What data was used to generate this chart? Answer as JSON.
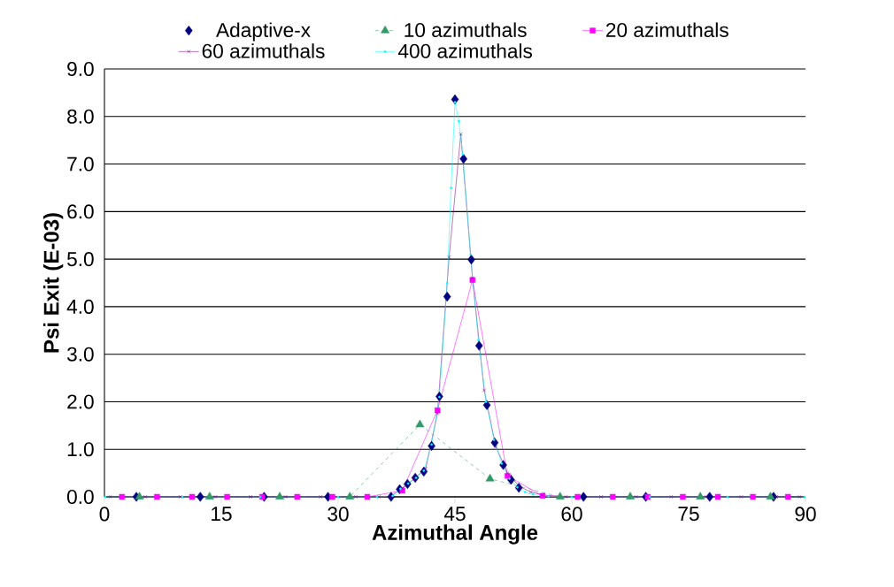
{
  "chart_data": {
    "type": "line",
    "xlabel": "Azimuthal Angle",
    "ylabel": "Psi Exit (E-03)",
    "xlim": [
      0,
      90
    ],
    "ylim": [
      0,
      9
    ],
    "xticks": [
      0,
      15,
      30,
      45,
      60,
      75,
      90
    ],
    "yticks": [
      {
        "value": 0,
        "label": "0.0"
      },
      {
        "value": 1,
        "label": "1.0"
      },
      {
        "value": 2,
        "label": "2.0"
      },
      {
        "value": 3,
        "label": "3.0"
      },
      {
        "value": 4,
        "label": "4.0"
      },
      {
        "value": 5,
        "label": "5.0"
      },
      {
        "value": 6,
        "label": "6.0"
      },
      {
        "value": 7,
        "label": "7.0"
      },
      {
        "value": 8,
        "label": "8.0"
      },
      {
        "value": 9,
        "label": "9.0"
      }
    ],
    "grid": "y",
    "legend": "top",
    "series": [
      {
        "name": "Adaptive-x",
        "type": "scatter",
        "marker": "diamond",
        "color": "#000080",
        "x": [
          4.1,
          12.3,
          20.5,
          28.7,
          36.8,
          37.9,
          38.9,
          39.9,
          41.0,
          42.0,
          43.0,
          44.0,
          45.0,
          46.1,
          47.1,
          48.1,
          49.1,
          50.1,
          51.2,
          52.2,
          53.2,
          61.5,
          69.5,
          77.7,
          85.9
        ],
        "values": [
          0,
          0,
          0,
          0,
          0,
          0.16,
          0.27,
          0.4,
          0.53,
          1.07,
          2.11,
          4.21,
          8.36,
          7.11,
          4.99,
          3.18,
          1.93,
          1.14,
          0.67,
          0.36,
          0.19,
          0,
          0,
          0,
          0
        ]
      },
      {
        "name": "10 azimuthals",
        "marker": "triangle",
        "line_style": "dashed",
        "color": "#339966",
        "x": [
          4.5,
          13.5,
          22.5,
          31.5,
          40.5,
          49.5,
          58.5,
          67.5,
          76.5,
          85.5
        ],
        "values": [
          0,
          0,
          0,
          0,
          1.52,
          0.38,
          0,
          0,
          0,
          0
        ]
      },
      {
        "name": "20 azimuthals",
        "marker": "square",
        "color": "#ff00ff",
        "x": [
          2.25,
          6.75,
          11.25,
          15.75,
          20.25,
          24.75,
          29.25,
          33.75,
          38.25,
          42.75,
          47.25,
          51.75,
          56.25,
          60.75,
          65.25,
          69.75,
          74.25,
          78.75,
          83.25,
          87.75
        ],
        "values": [
          0,
          0,
          0,
          0,
          0,
          0,
          0,
          0,
          0.13,
          1.82,
          4.56,
          0.44,
          0.02,
          0,
          0,
          0,
          0,
          0,
          0,
          0
        ]
      },
      {
        "name": "60 azimuthals",
        "marker": "cross",
        "color": "#800080",
        "x": [
          0.75,
          5.25,
          9.75,
          14.25,
          18.75,
          23.25,
          27.75,
          32.25,
          35.25,
          36.75,
          38.25,
          39.75,
          41.25,
          42.75,
          44.25,
          45.75,
          47.25,
          48.75,
          50.25,
          51.75,
          53.25,
          54.75,
          56.25,
          59.25,
          63.75,
          68.25,
          72.75,
          77.25,
          81.75,
          86.25,
          89.25
        ],
        "values": [
          0,
          0,
          0,
          0,
          0,
          0,
          0,
          0,
          0,
          0.01,
          0.18,
          0.38,
          0.6,
          1.75,
          5.04,
          7.63,
          4.6,
          2.24,
          1.05,
          0.5,
          0.22,
          0.1,
          0.04,
          0,
          0,
          0,
          0,
          0,
          0,
          0,
          0
        ]
      },
      {
        "name": "400 azimuthals",
        "marker": "circle",
        "color": "#00ffff",
        "x": [
          0.1,
          10,
          20,
          30,
          35,
          37,
          38,
          39,
          40,
          41,
          42,
          43,
          44,
          44.5,
          45,
          45.5,
          46,
          47,
          48,
          49,
          50,
          51,
          52,
          53,
          54,
          55,
          57,
          60,
          70,
          80,
          89.9
        ],
        "values": [
          0,
          0,
          0,
          0,
          0,
          0.02,
          0.17,
          0.28,
          0.4,
          0.55,
          1.1,
          2.1,
          4.5,
          6.5,
          8.3,
          7.9,
          7.2,
          5.1,
          3.3,
          2.0,
          1.2,
          0.7,
          0.38,
          0.2,
          0.1,
          0.05,
          0.01,
          0,
          0,
          0,
          0
        ]
      }
    ]
  }
}
